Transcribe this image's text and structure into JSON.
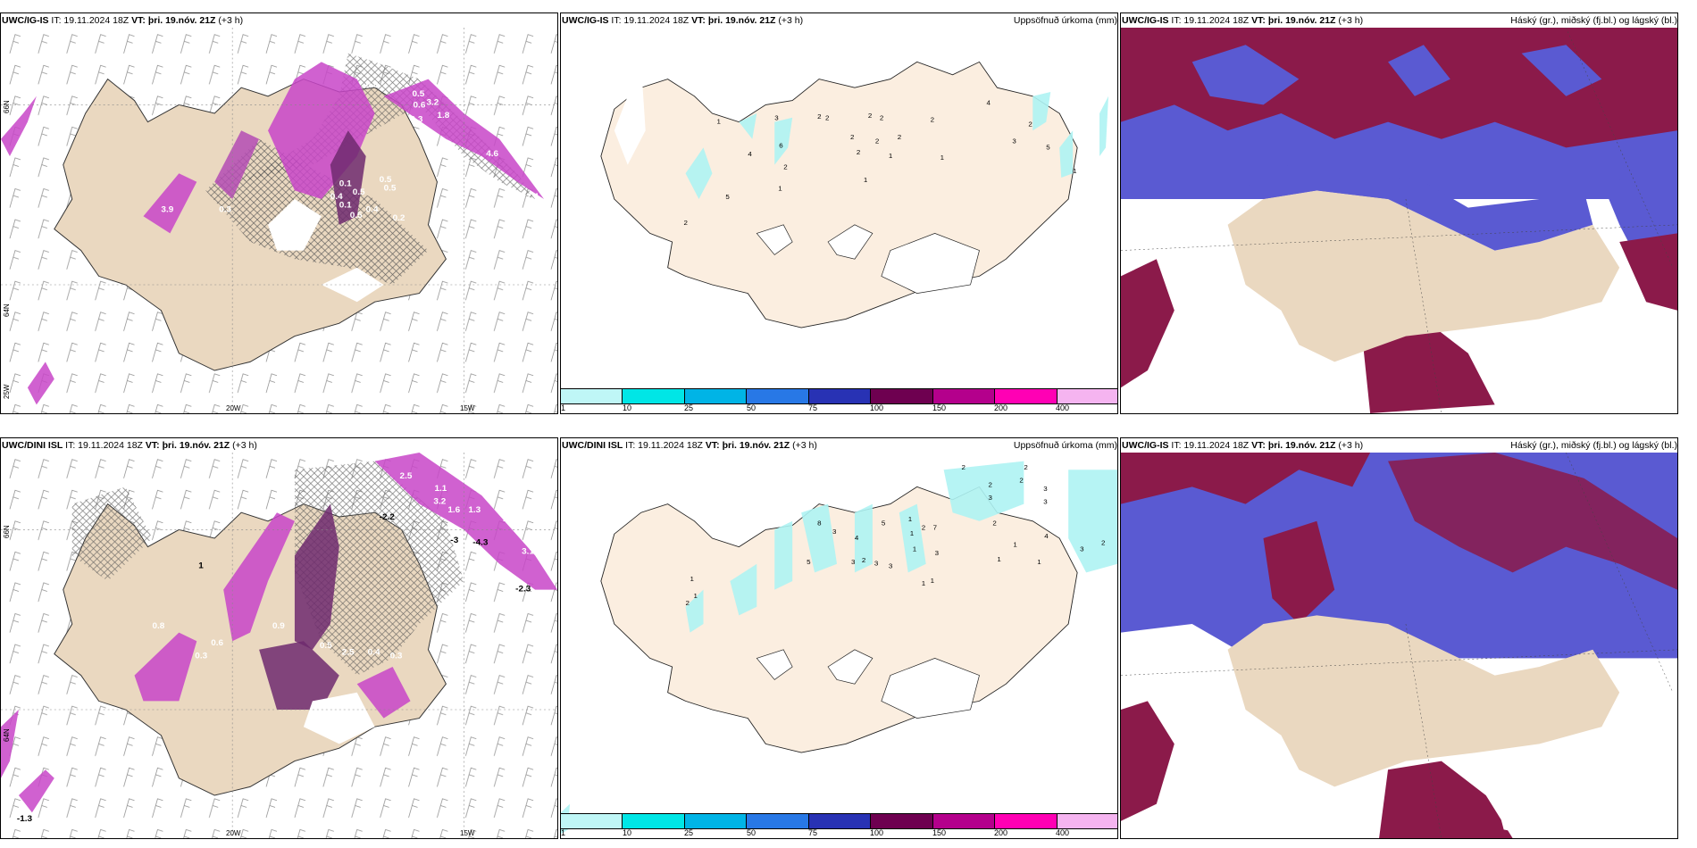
{
  "panels": [
    {
      "model": "UWC/IG-IS",
      "it": "IT: 19.11.2024 18Z",
      "vt_label": "VT:",
      "vt": "þri. 19.nóv. 21Z",
      "lead": "(+3 h)",
      "title": ""
    },
    {
      "model": "UWC/IG-IS",
      "it": "IT: 19.11.2024 18Z",
      "vt_label": "VT:",
      "vt": "þri. 19.nóv. 21Z",
      "lead": "(+3 h)",
      "title": "Uppsöfnuð úrkoma (mm)"
    },
    {
      "model": "UWC/IG-IS",
      "it": "IT: 19.11.2024 18Z",
      "vt_label": "VT:",
      "vt": "þri. 19.nóv. 21Z",
      "lead": "(+3 h)",
      "title": "Háský (gr.), miðský (fj.bl.) og lágský (bl.)"
    },
    {
      "model": "UWC/DINI ISL",
      "it": "IT: 19.11.2024 18Z",
      "vt_label": "VT:",
      "vt": "þri. 19.nóv. 21Z",
      "lead": "(+3 h)",
      "title": ""
    },
    {
      "model": "UWC/DINI ISL",
      "it": "IT: 19.11.2024 18Z",
      "vt_label": "VT:",
      "vt": "þri. 19.nóv. 21Z",
      "lead": "(+3 h)",
      "title": "Uppsöfnuð úrkoma (mm)"
    },
    {
      "model": "UWC/IG-IS",
      "it": "IT: 19.11.2024 18Z",
      "vt_label": "VT:",
      "vt": "þri. 19.nóv. 21Z",
      "lead": "(+3 h)",
      "title": "Háský (gr.), miðský (fj.bl.) og lágský (bl.)"
    }
  ],
  "axes": {
    "lat_66": "66N",
    "lat_64": "64N",
    "lon_25": "25W",
    "lon_20": "20W",
    "lon_15": "15W"
  },
  "legend": {
    "ticks": [
      "1",
      "10",
      "25",
      "50",
      "75",
      "100",
      "150",
      "200",
      "400"
    ],
    "colors": [
      "#bff6f6",
      "#00e6e6",
      "#00b4e6",
      "#2878e6",
      "#2832b4",
      "#6e0050",
      "#b4008c",
      "#ff00b4",
      "#f5b4f0"
    ]
  },
  "precip_labels_top": [
    "1",
    "3",
    "2",
    "2",
    "2",
    "2",
    "2",
    "4",
    "2",
    "3",
    "5",
    "1",
    "4",
    "6",
    "2",
    "2",
    "2",
    "1",
    "1",
    "2",
    "2",
    "1",
    "5",
    "1",
    "2"
  ],
  "precip_labels_bottom": [
    "2",
    "3",
    "2",
    "2",
    "3",
    "3",
    "2",
    "8",
    "5",
    "1",
    "2",
    "7",
    "3",
    "4",
    "5",
    "3",
    "3",
    "1",
    "1",
    "3",
    "2",
    "3",
    "2",
    "1",
    "4",
    "3",
    "2",
    "1",
    "1",
    "1",
    "1",
    "1",
    "2",
    "1"
  ],
  "temp_labels_top": [
    "0.8",
    "0.5",
    "0.6",
    "0.3",
    "3.2",
    "4.6",
    "1.8",
    "0.5",
    "0.5",
    "0.4",
    "0.4",
    "0.2",
    "0.1",
    "0.5",
    "0.1",
    "0.3",
    "0.5",
    "1.6",
    "2.4",
    "3.9",
    "0.3"
  ],
  "temp_labels_bottom": [
    "2.5",
    "1.1",
    "3.2",
    "1.6",
    "1.3",
    "-2.2",
    "-3",
    "-4.3",
    "-2.3",
    "3.1",
    "1",
    "0.5",
    "0.6",
    "0.3",
    "0.4",
    "0.3",
    "2.5",
    "2.4",
    "-1.3",
    "0.9",
    "0.8"
  ]
}
